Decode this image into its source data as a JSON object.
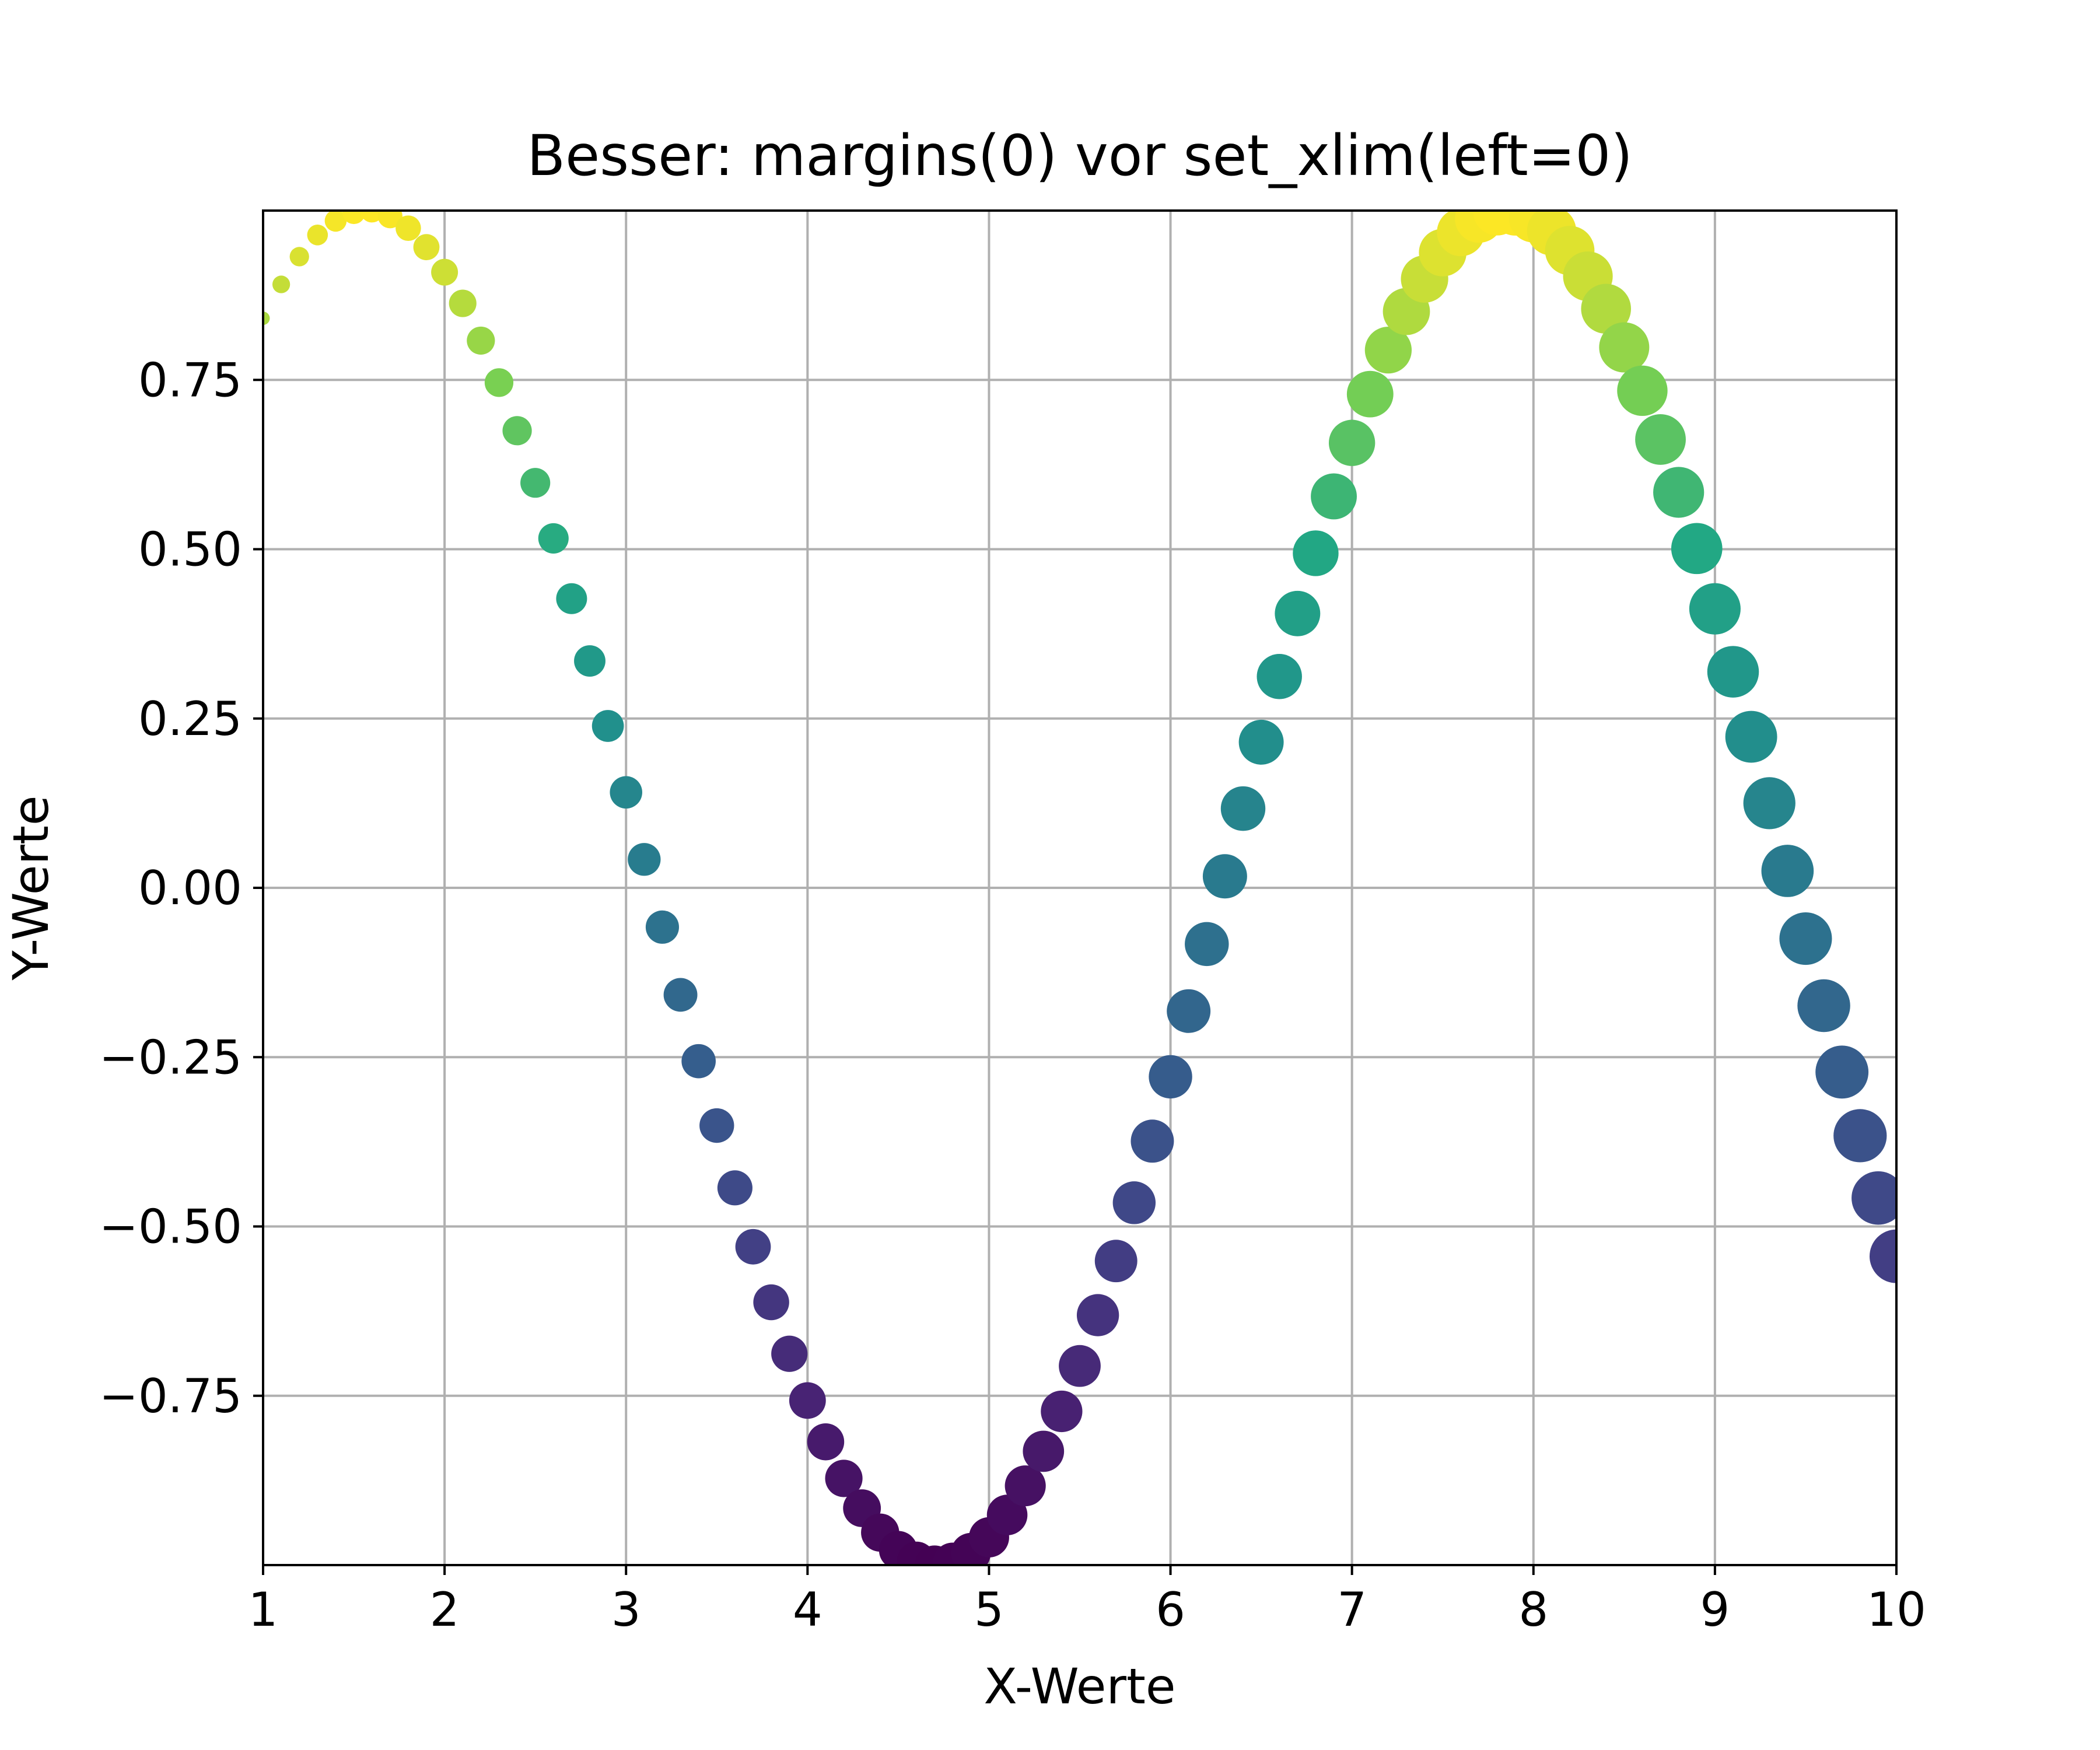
{
  "chart_data": {
    "type": "scatter",
    "title": "Besser: margins(0) vor set_xlim(left=0)",
    "xlabel": "X-Werte",
    "ylabel": "Y-Werte",
    "xlim": [
      1,
      10
    ],
    "ylim": [
      -1,
      1
    ],
    "grid": true,
    "legend": "none",
    "colormap": "viridis",
    "color_by": "y",
    "size_by": "x",
    "marker_size_range": [
      2.5,
      10
    ],
    "x_ticks": [
      "1",
      "2",
      "3",
      "4",
      "5",
      "6",
      "7",
      "8",
      "9",
      "10"
    ],
    "x_tick_values": [
      1,
      2,
      3,
      4,
      5,
      6,
      7,
      8,
      9,
      10
    ],
    "y_ticks": [
      "0.75",
      "0.50",
      "0.25",
      "0.00",
      "−0.25",
      "−0.50",
      "−0.75"
    ],
    "y_tick_values": [
      0.75,
      0.5,
      0.25,
      0,
      -0.25,
      -0.5,
      -0.75
    ],
    "series": [
      {
        "x": [
          1.0,
          1.1,
          1.2,
          1.3,
          1.4,
          1.5,
          1.6,
          1.7,
          1.8,
          1.9,
          2.0,
          2.1,
          2.2,
          2.3,
          2.4,
          2.5,
          2.6,
          2.7,
          2.8,
          2.9,
          3.0,
          3.1,
          3.2,
          3.3,
          3.4,
          3.5,
          3.6,
          3.7,
          3.8,
          3.9,
          4.0,
          4.1,
          4.2,
          4.3,
          4.4,
          4.5,
          4.6,
          4.7,
          4.8,
          4.9,
          5.0,
          5.1,
          5.2,
          5.3,
          5.4,
          5.5,
          5.6,
          5.7,
          5.8,
          5.9,
          6.0,
          6.1,
          6.2,
          6.3,
          6.4,
          6.5,
          6.6,
          6.7,
          6.8,
          6.9,
          7.0,
          7.1,
          7.2,
          7.3,
          7.4,
          7.5,
          7.6,
          7.7,
          7.8,
          7.9,
          8.0,
          8.1,
          8.2,
          8.3,
          8.4,
          8.5,
          8.6,
          8.7,
          8.8,
          8.9,
          9.0,
          9.1,
          9.2,
          9.3,
          9.4,
          9.5,
          9.6,
          9.7,
          9.8,
          9.9,
          10.0
        ],
        "y": [
          0.841,
          0.891,
          0.932,
          0.964,
          0.985,
          0.997,
          1.0,
          0.992,
          0.974,
          0.946,
          0.909,
          0.863,
          0.808,
          0.746,
          0.675,
          0.598,
          0.516,
          0.427,
          0.335,
          0.239,
          0.141,
          0.042,
          -0.058,
          -0.158,
          -0.256,
          -0.351,
          -0.443,
          -0.53,
          -0.612,
          -0.688,
          -0.757,
          -0.818,
          -0.872,
          -0.916,
          -0.952,
          -0.978,
          -0.994,
          -1.0,
          -0.996,
          -0.982,
          -0.959,
          -0.926,
          -0.883,
          -0.832,
          -0.773,
          -0.706,
          -0.631,
          -0.551,
          -0.465,
          -0.374,
          -0.279,
          -0.182,
          -0.083,
          0.017,
          0.117,
          0.215,
          0.312,
          0.405,
          0.494,
          0.578,
          0.657,
          0.729,
          0.794,
          0.851,
          0.899,
          0.938,
          0.968,
          0.988,
          0.999,
          0.999,
          0.989,
          0.97,
          0.941,
          0.903,
          0.855,
          0.798,
          0.734,
          0.662,
          0.584,
          0.501,
          0.412,
          0.319,
          0.223,
          0.125,
          0.025,
          -0.075,
          -0.174,
          -0.272,
          -0.366,
          -0.458,
          -0.544
        ]
      }
    ]
  }
}
